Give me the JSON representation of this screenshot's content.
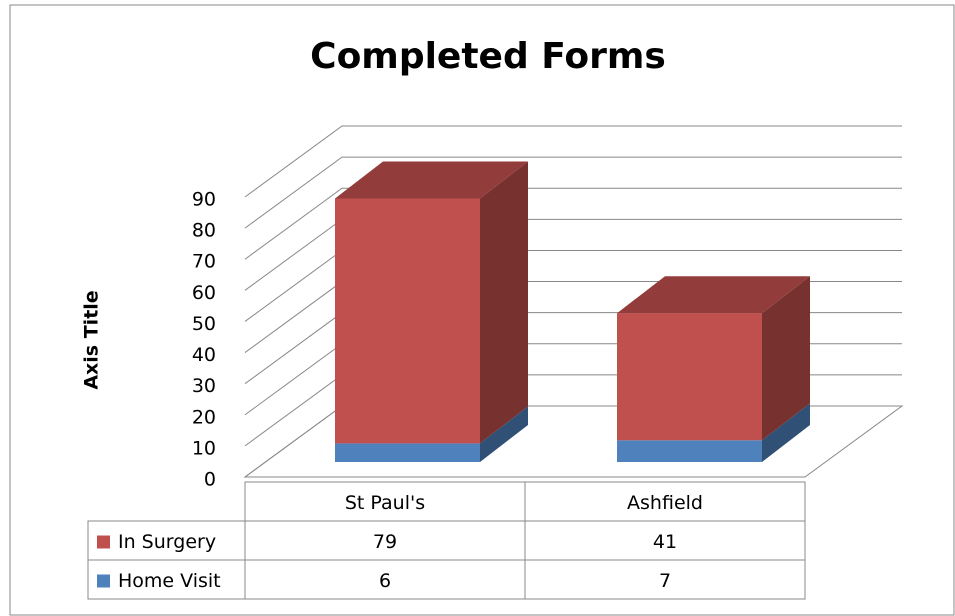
{
  "chart_data": {
    "type": "bar",
    "stacked": true,
    "title": "Completed Forms",
    "y_label": "Axis Title",
    "categories": [
      "St Paul's",
      "Ashfield"
    ],
    "series": [
      {
        "name": "In Surgery",
        "color": "#c0504d",
        "values": [
          79,
          41
        ]
      },
      {
        "name": "Home Visit",
        "color": "#4f81bd",
        "values": [
          6,
          7
        ]
      }
    ],
    "ylim": [
      0,
      90
    ],
    "yticks": [
      0,
      10,
      20,
      30,
      40,
      50,
      60,
      70,
      80,
      90
    ],
    "grid": true,
    "legend": "table"
  }
}
